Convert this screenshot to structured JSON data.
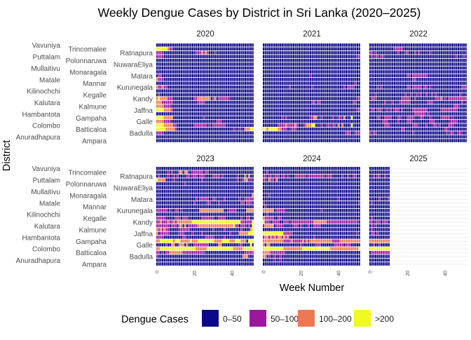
{
  "chart_data": {
    "type": "heatmap",
    "title": "Weekly Dengue Cases by District in Sri Lanka (2020–2025)",
    "xlabel": "Week Number",
    "ylabel": "District",
    "x_ticks": [
      "0",
      "20",
      "40"
    ],
    "districts": [
      "Vavuniya",
      "Trincomalee",
      "Ratnapura",
      "Puttalam",
      "Polonnaruwa",
      "NuwaraEliya",
      "Mullaitivu",
      "Monaragala",
      "Matara",
      "Matale",
      "Mannar",
      "Kurunegala",
      "Kilinochchi",
      "Kegalle",
      "Kandy",
      "Kalutara",
      "Kalmune",
      "Jaffna",
      "Hambantota",
      "Gampaha",
      "Galle",
      "Colombo",
      "Batticaloa",
      "Badulla",
      "Anuradhapura",
      "Ampara"
    ],
    "legend": {
      "title": "Dengue Cases",
      "placement": "bottom",
      "categories": [
        {
          "code": "0",
          "label": "0–50",
          "color": "#0d0887"
        },
        {
          "code": "1",
          "label": "50–100",
          "color": "#9c179e"
        },
        {
          "code": "2",
          "label": "100–200",
          "color": "#ed7953"
        },
        {
          "code": "3",
          "label": ">200",
          "color": "#f0f921"
        }
      ]
    },
    "panels": [
      {
        "year": "2020",
        "rows": [
          "0000000000 0000000000 0000000000 0000000000 0000000000 00",
          "3333332110 0000000000 0000000000 0000000000 0000000000 00",
          "1111000000 0000000000 0111212100 0100000000 0000000000 00",
          "1111000000 0000000000 0000000000 0000000000 0000000000 00",
          "0000000000 0000000000 0000000000 0000000000 0000000000 00",
          "0000000000 0000000000 0000000000 0000000000 0000000000 00",
          "0000000000 0000000000 0000000000 0000000000 0000000000 00",
          "0000000000 0000000000 0000000000 0000000000 0000000000 00",
          "0110000000 0000000000 0000000000 0000000000 0000000000 00",
          "2111000000 0000000000 0000000000 0000000000 0000000000 00",
          "0000000000 0000000000 0000000000 0000000000 0000000000 00",
          "2112110000 0000000000 0000000000 0000000000 0000000000 00",
          "0000000000 0000000000 0000000000 0000000000 0000000000 00",
          "0100000000 0000000000 0000000000 0000000000 0000000000 00",
          "2322221110 0000000000 1122222220 1201111110 0000000000 00",
          "2221111110 0000000000 0011110000 0000000000 0000000000 00",
          "2222111100 0000000000 0000000000 0000000000 0000000000 00",
          "3333222210 0000000000 0000000000 0000000000 0000000000 00",
          "0000000000 0000000000 0000000000 0000000000 0000000000 00",
          "3333222220 0000000000 0000010000 0000000000 0000000000 00",
          "2222111100 0000000000 0000000000 0011100000 0000000000 00",
          "3333222221 1000000000 1111111010 1111111000 0000000000 00",
          "3333322222 1000000000 0000000000 0000000000 0100100222 33",
          "1111000000 0000000000 0000000000 0000000000 0000000000 00",
          "0000000000 0000000000 0000000000 0000000000 0000000000 00",
          "0000000000 0000000000 0000000000 0000000000 0000000000 00"
        ]
      },
      {
        "year": "2021",
        "rows": [
          "0000000000 0000000000 0000000000 0000000000 0000000000 00",
          "0000000000 0000000000 0000000000 0000000000 0000000000 00",
          "0000000000 0000000000 0000000000 0000000000 0000000000 00",
          "0000000000 0000000000 0000000000 0000000000 0000000000 11",
          "0000000000 0000000000 0000000000 0000000000 0000000000 00",
          "0000000000 0000000000 0000000000 0000000000 0000000000 00",
          "0000000000 0000000000 0000000000 0000000000 0000000000 00",
          "0000000000 0000000000 0000000000 0000000000 0000000000 00",
          "0000000000 0000000000 0000010000 0000000000 0000000000 00",
          "0000000000 0000000000 0000000000 0000000000 0000000000 00",
          "0000000000 0000000000 0000000000 0000000000 0000000001 00",
          "0000000000 0000100000 0000001000 0000000000 0001011110 00",
          "0000000000 0000000000 0000000000 0000000000 0000000000 00",
          "0000000000 0000000000 0000000000 0000000000 0000000000 00",
          "0000000000 0000000000 0000000000 0000000000 0000000000 11",
          "0000000000 0000000000 0000001101 1000000000 0000000011 00",
          "0000000000 0000000000 0000000000 0000000000 0000000000 00",
          "0000000000 0000000000 0000000000 0000000000 0000000000 11",
          "0000000000 0000000000 0000000000 0000000000 0000000000 00",
          "0000000000 1010000000 0000011220 0100000100 1102000300 00",
          "0000000000 0000000000 0000000000 0000000000 0000000000 00",
          "0000000011 1121111210 0012223300 0100110110 2020000300 00",
          "3323333322 1110011100 0000000000 0000000000 0000000000 00",
          "0000000000 0000000000 0000000000 0000000000 0000111001 11",
          "0000000000 0000000000 0000000000 0000000000 0000000000 00",
          "0000000000 0000000000 0000000000 0000000000 0000000000 00"
        ]
      },
      {
        "year": "2022",
        "rows": [
          "0000000000 0000000000 0000000000 0000000000 0000000000 00",
          "0000000000 0001111100 0000000000 0000000000 0000000000 00",
          "1101000000 0000010001 1000101000 0010000000 0000000000 00",
          "0101101100 0000000000 0000000000 0000000000 0000001000 10",
          "0000000000 0000000000 0000000000 0000000000 0000000000 00",
          "0000000000 0000000000 0000000000 0000000000 0000000000 00",
          "0000000000 0000000000 0000000000 0000000000 0000000000 00",
          "0000000000 0000000000 0000000000 0000000000 0000000000 00",
          "0000000000 0000000000 1101111111 1000000000 0000000000 00",
          "0000000000 0000000000 0001100000 0000000000 0000000000 00",
          "0000000000 0000000000 0000000000 0000000000 0000000000 00",
          "0000101000 0000000000 1101111101 1010000000 0000000001 11",
          "0000000000 0000000000 0000000000 0000000000 0000000000 00",
          "0001000000 0000000001 0010010100 1001010000 0000000010 00",
          "0111000000 0000000111 1100100000 0000011120 1011111111 11",
          "0000000010 0010001111 1100000000 0111000000 0000000001 00",
          "0000000000 0000000000 0000000000 0000000000 0000011100 00",
          "0110111001 0101110100 0001111111 1000000011 1111111000 00",
          "0000000000 0000000000 0000111111 0100000000 0000000000 00",
          "0000110011 1100011000 1111000110 0010000011 1110100000 00",
          "0000000111 0000010000 1110000000 0011100000 0001111000 00",
          "0000000011 1000000000 0001110000 1000110100 0011100000 00",
          "0000000000 0000000110 0000000000 0000000000 1100000000 00",
          "1011000000 0000000000 0001000000 0000000000 0101100110 00",
          "0000000000 0000000000 0000000000 0000000000 0000000000 00",
          "0000000000 0000000000 0000000000 0000000000 0000000000 00"
        ]
      },
      {
        "year": "2023",
        "rows": [
          "0000000000 0000000000 0000000000 0000000000 0000000000 00",
          "0000001010 0022022001 1111101100 0000000000 0000000000 00",
          "0100001001 0100001101 1101110000 1111010000 0001000202 00",
          "3222200001 0000000000 0000100000 0000000000 0001001220 10",
          "0000000000 0000010000 0000000000 0000000000 0000000000 00",
          "0000000000 0000000000 0000000000 0000000000 0000000000 00",
          "0000000000 0000000000 0000000000 0000000000 0000000000 00",
          "0000000000 0000000000 0000000000 0000000000 0000000000 02",
          "0000000000 0000000000 0101111100 1100001000 0000100111 11",
          "0000000000 0000000000 1000000110 0001000000 0000011011 10",
          "0000000000 0000000000 0000000000 0000000000 0000000000 00",
          "1111110100 1101000000 0002222222 2222220011 1110000022 22",
          "0000000000 0000000000 0000000000 0000000000 0000000000 00",
          "1111100000 1110111000 0000111111 1001111000 0000010011 00",
          "1121112112 1222222223 3333333333 3333333333 3333311111 13",
          "1111111011 1022020111 1122222222 2222222222 2311011101 03",
          "2121211000 0011111100 0000000000 1000001000 0000010000 23",
          "2011111000 0011100001 0000100000 0000000001 0000222223 33",
          "1111000000 0000110000 0000001111 1000001000 0000000000 00",
          "2233333332 3332222232 2233333333 3222233332 2233322203 33",
          "0000010022 0022202000 1111111100 0002200000 0000110000 30",
          "2233333333 3333333333 3222222333 3333333333 3222223333 33",
          "1101011222 2222111111 1111110000 0000000000 0000000111 11",
          "1000000000 0000000000 0000000000 0000000000 0000002220 00",
          "0000000000 0000000000 0000000000 0000000000 0000000000 00",
          "0000000000 0000000000 0000000000 0000000000 0000000000 00"
        ]
      },
      {
        "year": "2024",
        "rows": [
          "0000000000 0000000000 0000000000 0000000000 0000000000 00",
          "0010000000 0000000000 0000000000 0000000000 0000000000 00",
          "1101101110 1101000111 1110111111 1110111000 0010010011 00",
          "1102110200 0000000000 0000000000 0000000000 0000000000 00",
          "0000000000 0000000000 0000000000 0000000000 0000000000 00",
          "0000000000 0000000000 0000000000 0000000000 0000000000 00",
          "0000000000 0000000000 0000000000 0000000000 0000000000 00",
          "0001000000 0000000000 0000000000 0000000000 0000000000 00",
          "0000000000 0000000000 0000000000 0000000000 1000000000 00",
          "1000000000 0000000000 0000000000 0000000000 0000000000 01",
          "0100000000 0000000000 0000000000 0000000000 0000000000 00",
          "2222220111 1100000000 0000000000 0100000000 0000000000 00",
          "0010000000 0000000000 0000000000 0000000000 0000000000 00",
          "2111110011 0000000000 0000000000 0000000000 0000000000 00",
          "3111011110 0111011111 1111111222 2222111111 1111111111 10",
          "1222220111 1000001110 1000100111 1000000000 0000000000 00",
          "0000000000 0000000000 0000000000 0000000000 0000000000 00",
          "3333333333 3111110000 0000000000 0000000000 0000000000 10",
          "1221212122 1212000000 0000000100 0000000000 0000000000 00",
          "2222222222 2111121111 1212122222 2222222111 1222222222 22",
          "2022000000 0000000000 1000000011 1000000011 1110111000 00",
          "3333333333 3222222222 2333333333 3333332222 2222222222 23",
          "2222111111 1100000000 0000000000 0000000000 0000000000 00",
          "2201001001 0000000000 0000000000 0000000000 0000000000 00",
          "0000001001 0000000000 0000000000 0000000000 0000000000 00",
          "0000000000 0000000000 0000000000 0000000000 0000000000 00"
        ]
      },
      {
        "year": "2025",
        "rows": [
          "00000000000",
          "00000000000",
          "00101100100",
          "00000000000",
          "00000000000",
          "00000000000",
          "00000000000",
          "00000000000",
          "00000100001",
          "01000000000",
          "00000000000",
          "00000000000",
          "00000000000",
          "01000000000",
          "11011101110",
          "01010000000",
          "01000000000",
          "01101000000",
          "00000000000",
          "22222222222",
          "00100100000",
          "33333333333",
          "01111111111",
          "00000000000",
          "00000000000",
          "00000000000"
        ]
      }
    ]
  }
}
